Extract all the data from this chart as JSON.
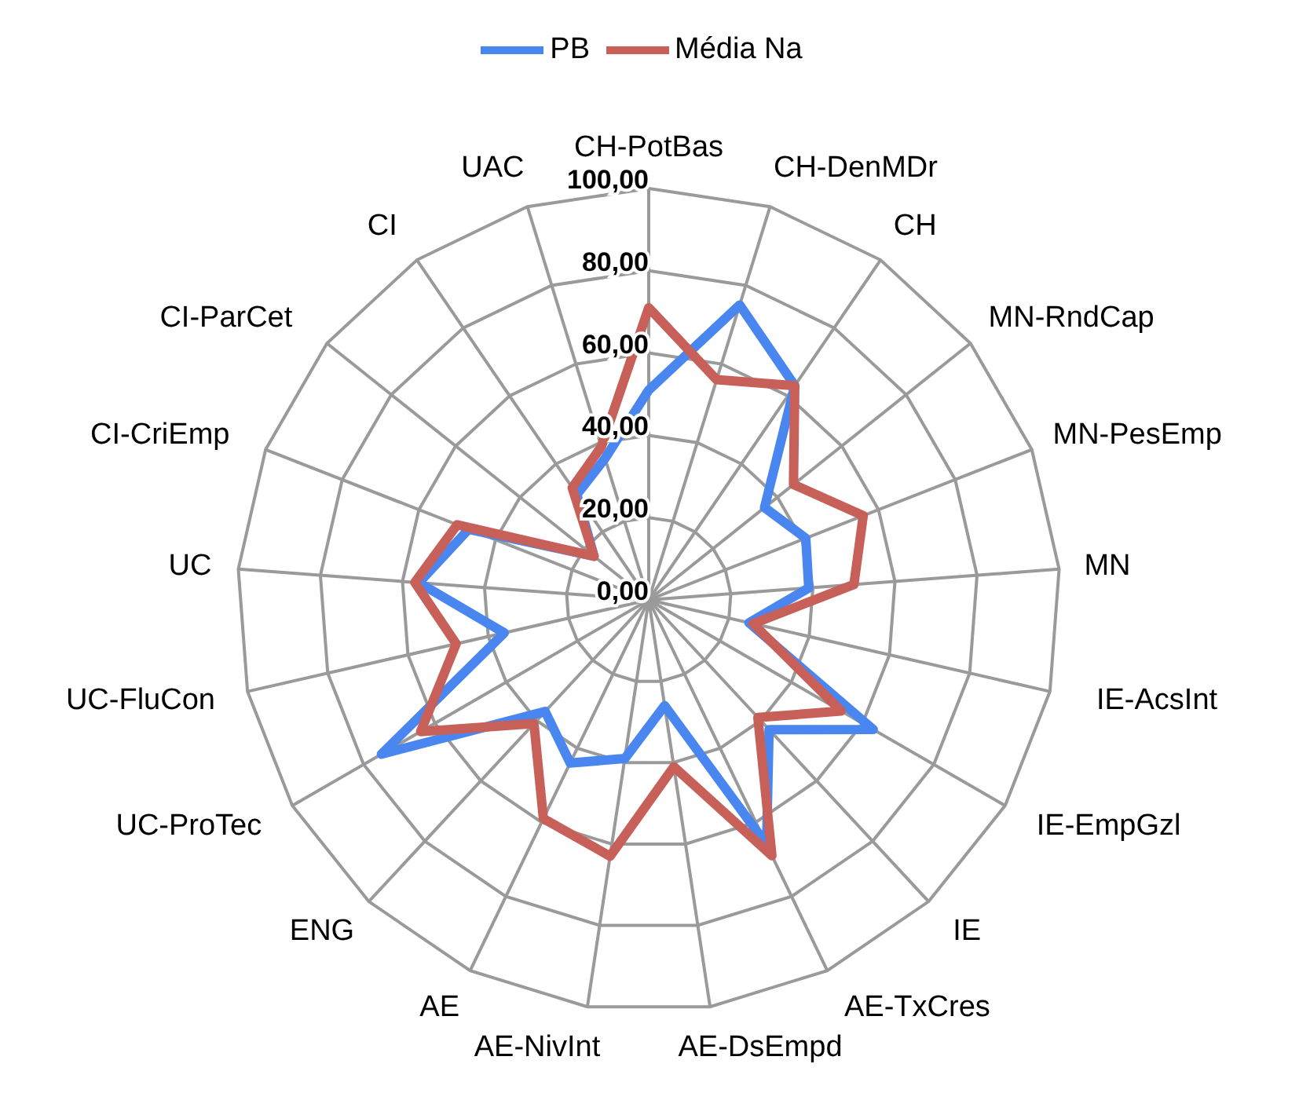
{
  "chart_data": {
    "type": "radar",
    "categories": [
      "CH-PotBas",
      "CH-DenMDr",
      "CH",
      "MN-RndCap",
      "MN-PesEmp",
      "MN",
      "IE-AcsInt",
      "IE-EmpGzl",
      "IE",
      "AE-TxCres",
      "AE-DsEmpd",
      "AE-NivInt",
      "AE",
      "ENG",
      "UC-ProTec",
      "UC-FluCon",
      "UC",
      "CI-CriEmp",
      "CI-ParCet",
      "CI",
      "UAC"
    ],
    "series": [
      {
        "name": "PB",
        "color": "#4a86f0",
        "values": [
          51,
          75,
          63,
          36,
          41,
          39,
          25,
          63,
          43,
          66,
          26,
          39,
          44,
          37,
          75,
          36,
          56,
          47,
          17,
          31,
          36
        ]
      },
      {
        "name": "Média Na",
        "color": "#c8605a",
        "values": [
          71,
          56,
          63,
          45,
          56,
          50,
          26,
          54,
          39,
          69,
          41,
          63,
          59,
          41,
          64,
          48,
          57,
          50,
          17,
          33,
          39
        ]
      }
    ],
    "ylim": [
      0,
      100
    ],
    "yticks": [
      {
        "value": 0,
        "label": "0,00"
      },
      {
        "value": 20,
        "label": "20,00"
      },
      {
        "value": 40,
        "label": "40,00"
      },
      {
        "value": 60,
        "label": "60,00"
      },
      {
        "value": 80,
        "label": "80,00"
      },
      {
        "value": 100,
        "label": "100,00"
      }
    ],
    "grid": true,
    "legend": "top",
    "marker": "none",
    "line_style": "solid"
  }
}
